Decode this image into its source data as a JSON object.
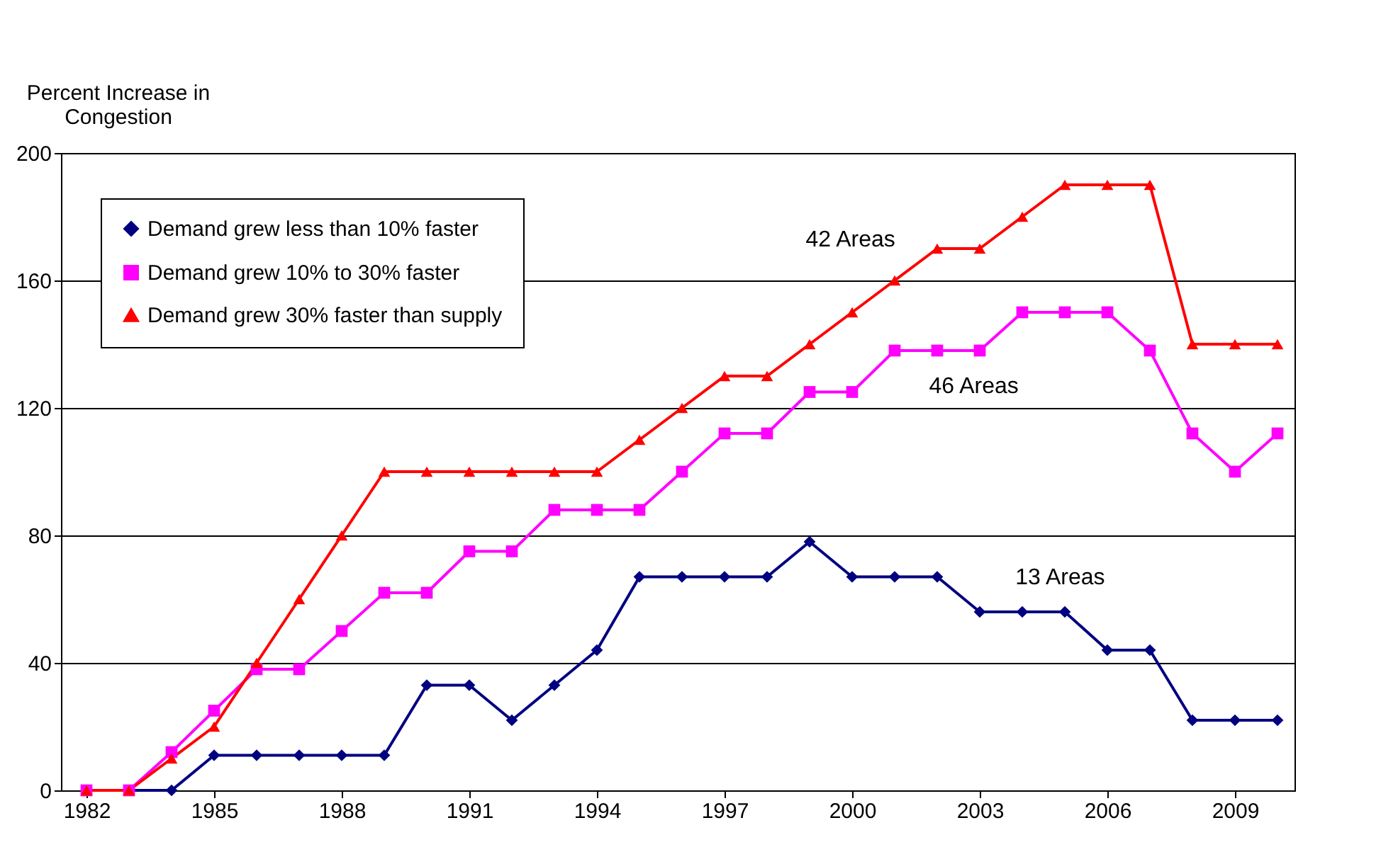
{
  "chart_data": {
    "type": "line",
    "ylabel": "Percent Increase in Congestion",
    "x": [
      1982,
      1983,
      1984,
      1985,
      1986,
      1987,
      1988,
      1989,
      1990,
      1991,
      1992,
      1993,
      1994,
      1995,
      1996,
      1997,
      1998,
      1999,
      2000,
      2001,
      2002,
      2003,
      2004,
      2005,
      2006,
      2007,
      2008,
      2009,
      2010
    ],
    "series": [
      {
        "name": "Demand grew less than 10% faster",
        "color": "#000080",
        "marker": "diamond",
        "values": [
          0,
          0,
          0,
          11,
          11,
          11,
          11,
          11,
          33,
          33,
          22,
          33,
          44,
          67,
          67,
          67,
          67,
          78,
          67,
          67,
          67,
          56,
          56,
          56,
          44,
          44,
          22,
          22,
          22
        ]
      },
      {
        "name": "Demand grew 10% to 30% faster",
        "color": "#ff00ff",
        "marker": "square",
        "values": [
          0,
          0,
          12,
          25,
          38,
          38,
          50,
          62,
          62,
          75,
          75,
          88,
          88,
          88,
          100,
          112,
          112,
          125,
          125,
          138,
          138,
          138,
          150,
          150,
          150,
          138,
          112,
          100,
          112
        ]
      },
      {
        "name": "Demand grew 30% faster than supply",
        "color": "#ff0000",
        "marker": "triangle",
        "values": [
          0,
          0,
          10,
          20,
          40,
          60,
          80,
          100,
          100,
          100,
          100,
          100,
          100,
          110,
          120,
          130,
          130,
          140,
          150,
          160,
          170,
          170,
          180,
          190,
          190,
          190,
          140,
          140,
          140
        ]
      }
    ],
    "annotations": [
      "42 Areas",
      "46 Areas",
      "13 Areas"
    ],
    "xlim": [
      1981.4,
      2010.4
    ],
    "xticks": [
      1982,
      1985,
      1988,
      1991,
      1994,
      1997,
      2000,
      2003,
      2006,
      2009
    ],
    "ylim": [
      0,
      200
    ],
    "yticks": [
      0,
      40,
      80,
      120,
      160,
      200
    ],
    "grid": "y",
    "legend": "top left",
    "line_style": "solid"
  }
}
